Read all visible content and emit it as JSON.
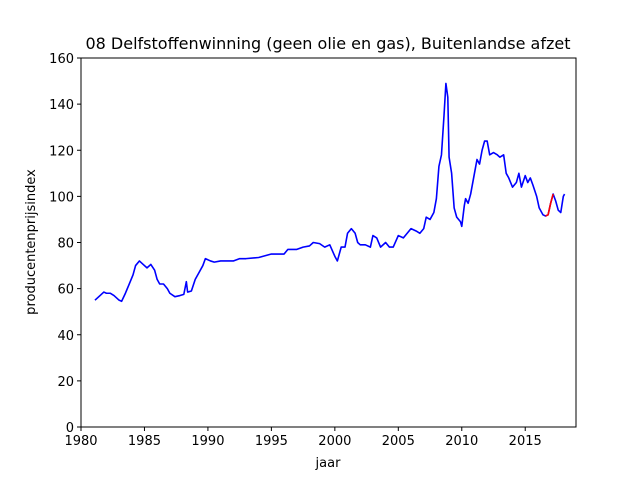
{
  "chart_data": {
    "type": "line",
    "title": "08 Delfstoffenwinning (geen olie en gas), Buitenlandse afzet",
    "xlabel": "jaar",
    "ylabel": "producentenprijsindex",
    "xlim": [
      1980,
      2019
    ],
    "ylim": [
      0,
      160
    ],
    "xticks": [
      1980,
      1985,
      1990,
      1995,
      2000,
      2005,
      2010,
      2015
    ],
    "yticks": [
      0,
      20,
      40,
      60,
      80,
      100,
      120,
      140,
      160
    ],
    "series": [
      {
        "color": "#0000ff",
        "x": [
          1981.1,
          1981.5,
          1981.8,
          1982.0,
          1982.3,
          1982.6,
          1983.0,
          1983.2,
          1983.5,
          1983.8,
          1984.1,
          1984.3,
          1984.6,
          1984.9,
          1985.2,
          1985.5,
          1985.8,
          1986.0,
          1986.2,
          1986.5,
          1986.8,
          1987.0,
          1987.4,
          1987.8,
          1988.1,
          1988.3,
          1988.4,
          1988.7,
          1989.0,
          1989.3,
          1989.6,
          1989.8,
          1990.2,
          1990.5,
          1991.0,
          1992.0,
          1992.5,
          1993.0,
          1994.0,
          1995.0,
          1996.0,
          1996.3,
          1997.0,
          1997.5,
          1998.0,
          1998.3,
          1998.8,
          1999.2,
          1999.6,
          2000.0,
          2000.2,
          2000.5,
          2000.8,
          2001.0,
          2001.3,
          2001.6,
          2001.8,
          2002.0,
          2002.4,
          2002.8,
          2003.0,
          2003.3,
          2003.6,
          2004.0,
          2004.3,
          2004.6,
          2005.0,
          2005.4,
          2006.0,
          2006.4,
          2006.7,
          2007.0,
          2007.2,
          2007.5,
          2007.8,
          2008.0,
          2008.2,
          2008.4,
          2008.6,
          2008.75,
          2008.9,
          2009.0,
          2009.2,
          2009.4,
          2009.6,
          2009.9,
          2010.0,
          2010.2,
          2010.3,
          2010.5,
          2010.7,
          2011.0,
          2011.2,
          2011.4,
          2011.6,
          2011.8,
          2012.0,
          2012.2,
          2012.5,
          2012.8,
          2013.0,
          2013.3,
          2013.5,
          2013.7,
          2014.0,
          2014.3,
          2014.5,
          2014.7,
          2015.0,
          2015.2,
          2015.4,
          2015.6,
          2015.9,
          2016.1,
          2016.4,
          2016.6,
          2016.8,
          2017.0,
          2017.2,
          2017.4,
          2017.6,
          2017.8,
          2018.0,
          2018.1
        ],
        "values": [
          55,
          57,
          58.5,
          58,
          58,
          57,
          55,
          54.5,
          58,
          62,
          66,
          70,
          72,
          70.5,
          69,
          70.5,
          68,
          64,
          62,
          62,
          60,
          58,
          56.5,
          57,
          57.5,
          63,
          58.5,
          59,
          64,
          67,
          70,
          73,
          72,
          71.5,
          72,
          72,
          73,
          73,
          73.5,
          75,
          75,
          77,
          77,
          78,
          78.5,
          80,
          79.5,
          78,
          79,
          74,
          72,
          78,
          78,
          84,
          86,
          84,
          80,
          79,
          79,
          78,
          83,
          82,
          78,
          80,
          78,
          78,
          83,
          82,
          86,
          85,
          84,
          86,
          91,
          90,
          93,
          99,
          113,
          118,
          135,
          149,
          143,
          117,
          110,
          95,
          91,
          89,
          87,
          96,
          99,
          97,
          101,
          110,
          116,
          114,
          120,
          124,
          124,
          118,
          119,
          118,
          117,
          118,
          110,
          108,
          104,
          106,
          110,
          104,
          109,
          106,
          108,
          105,
          100,
          95,
          92,
          91.5,
          92,
          97,
          101,
          98,
          94,
          93,
          100,
          101
        ]
      },
      {
        "color": "#ff0000",
        "x": [
          2016.6,
          2016.8,
          2017.0,
          2017.2
        ],
        "values": [
          91.5,
          92,
          97,
          101
        ]
      }
    ]
  }
}
